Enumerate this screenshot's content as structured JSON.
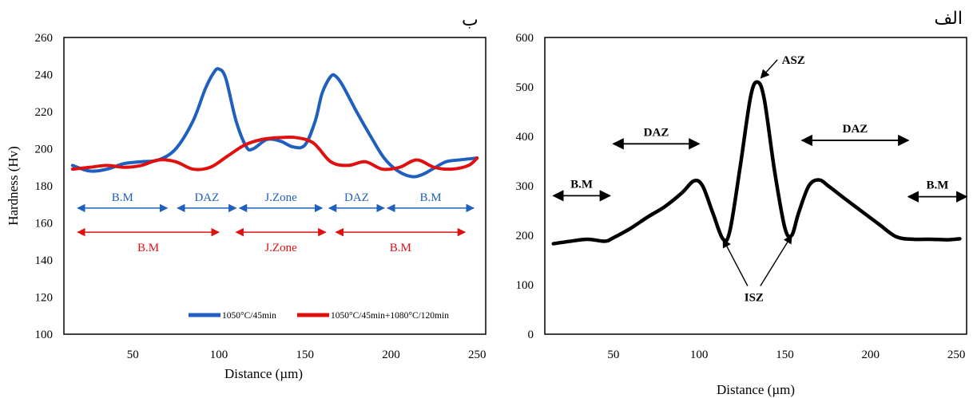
{
  "chart_data": [
    {
      "type": "line",
      "panel_tag": "ب",
      "xlabel": "Distance (µm)",
      "ylabel": "Hardness  (Hv)",
      "xlim": [
        10,
        255
      ],
      "ylim": [
        100,
        260
      ],
      "xticks": [
        50,
        100,
        150,
        200,
        250
      ],
      "yticks": [
        100,
        120,
        140,
        160,
        180,
        200,
        220,
        240,
        260
      ],
      "legend_position": "bottom-right",
      "series": [
        {
          "name": "1050°C/45min",
          "color": "#1f5fbf",
          "x": [
            15,
            25,
            35,
            45,
            55,
            65,
            75,
            85,
            92,
            97,
            100,
            104,
            110,
            116,
            120,
            128,
            136,
            143,
            150,
            156,
            160,
            165,
            168,
            172,
            180,
            188,
            196,
            204,
            212,
            218,
            224,
            232,
            240,
            250
          ],
          "y": [
            191,
            188,
            189,
            192,
            193,
            194,
            200,
            215,
            232,
            241,
            243,
            238,
            215,
            201,
            200,
            205,
            204,
            201,
            202,
            215,
            230,
            239,
            239,
            234,
            220,
            207,
            195,
            188,
            185,
            186,
            189,
            193,
            194,
            195
          ]
        },
        {
          "name": "1050°C/45min+1080°C/120min",
          "color": "#e01010",
          "x": [
            15,
            25,
            35,
            45,
            55,
            65,
            75,
            85,
            95,
            105,
            115,
            125,
            135,
            145,
            155,
            165,
            175,
            185,
            195,
            205,
            215,
            225,
            235,
            245,
            250
          ],
          "y": [
            189,
            190,
            191,
            190,
            191,
            194,
            193,
            189,
            190,
            196,
            202,
            205,
            206,
            206,
            203,
            193,
            191,
            193,
            189,
            190,
            194,
            190,
            189,
            191,
            195
          ]
        }
      ],
      "annotations_blue": [
        {
          "text": "B.M",
          "x1": 18,
          "x2": 70
        },
        {
          "text": "DAZ",
          "x1": 76,
          "x2": 110
        },
        {
          "text": "J.Zone",
          "x1": 112,
          "x2": 160
        },
        {
          "text": "DAZ",
          "x1": 164,
          "x2": 196
        },
        {
          "text": "B.M",
          "x1": 198,
          "x2": 248
        }
      ],
      "annotations_red": [
        {
          "text": "B.M",
          "x1": 18,
          "x2": 100
        },
        {
          "text": "J.Zone",
          "x1": 110,
          "x2": 162
        },
        {
          "text": "B.M",
          "x1": 168,
          "x2": 243
        }
      ]
    },
    {
      "type": "line",
      "panel_tag": "الف",
      "xlabel": "Distance (µm)",
      "ylabel": "",
      "xlim": [
        10,
        256
      ],
      "ylim": [
        0,
        600
      ],
      "xticks": [
        50,
        100,
        150,
        200,
        250
      ],
      "yticks": [
        0,
        100,
        200,
        300,
        400,
        500,
        600
      ],
      "series": [
        {
          "name": "",
          "color": "#000000",
          "x": [
            15,
            25,
            35,
            45,
            50,
            60,
            70,
            80,
            90,
            97,
            102,
            108,
            114,
            118,
            124,
            130,
            134,
            138,
            144,
            150,
            154,
            158,
            164,
            170,
            176,
            185,
            195,
            205,
            215,
            225,
            235,
            245,
            252
          ],
          "y": [
            183,
            188,
            192,
            188,
            195,
            214,
            237,
            258,
            286,
            310,
            300,
            245,
            192,
            210,
            340,
            480,
            510,
            475,
            330,
            215,
            200,
            245,
            300,
            312,
            298,
            274,
            248,
            222,
            197,
            192,
            192,
            191,
            193
          ]
        }
      ],
      "arrow_labels": [
        {
          "text": "B.M",
          "x1": 15,
          "x2": 48,
          "y": 280
        },
        {
          "text": "DAZ",
          "x1": 50,
          "x2": 100,
          "y": 385
        },
        {
          "text": "DAZ",
          "x1": 160,
          "x2": 222,
          "y": 392
        },
        {
          "text": "B.M",
          "x1": 222,
          "x2": 256,
          "y": 278
        }
      ],
      "point_labels": [
        {
          "text": "ASZ",
          "label_x": 155,
          "label_y": 555,
          "target_x": 136,
          "target_y": 518
        },
        {
          "text": "ISZ",
          "label_x": 132,
          "label_y": 75,
          "targets": [
            [
              114,
              192
            ],
            [
              154,
              200
            ]
          ]
        }
      ]
    }
  ]
}
